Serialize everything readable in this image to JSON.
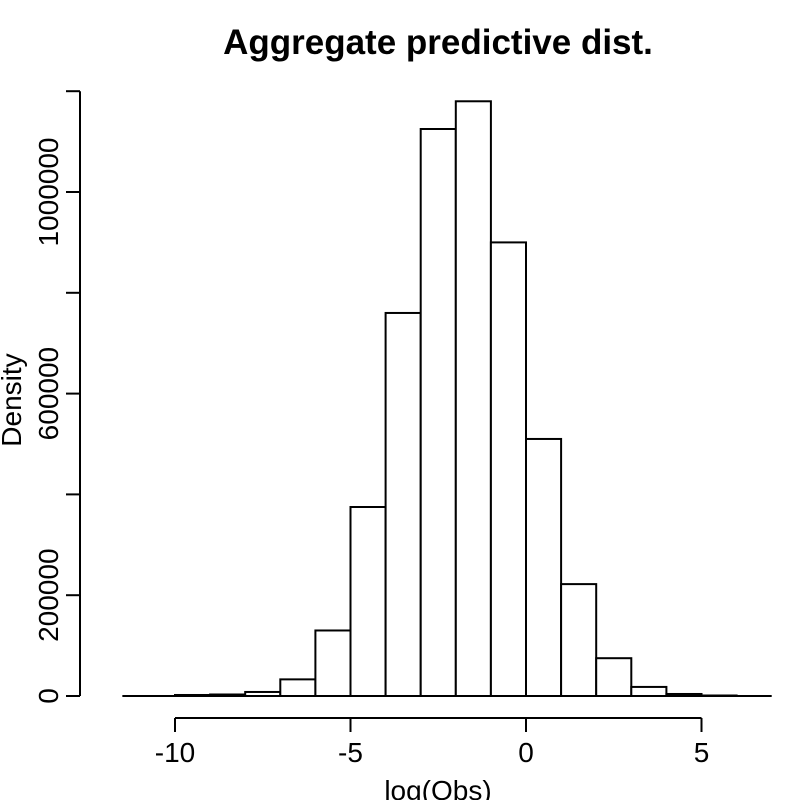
{
  "chart_data": {
    "type": "bar",
    "title": "Aggregate predictive dist.",
    "xlabel": "log(Obs)",
    "ylabel": "Density",
    "xlim": [
      -11.5,
      7
    ],
    "ylim": [
      0,
      1200000
    ],
    "x_ticks": [
      "-10",
      "-5",
      "0",
      "5"
    ],
    "y_ticks": [
      "0",
      "200000",
      "600000",
      "1000000"
    ],
    "grid": false,
    "bins": [
      {
        "x0": -10,
        "x1": -9,
        "value": 2000
      },
      {
        "x0": -9,
        "x1": -8,
        "value": 3000
      },
      {
        "x0": -8,
        "x1": -7,
        "value": 8000
      },
      {
        "x0": -7,
        "x1": -6,
        "value": 33000
      },
      {
        "x0": -6,
        "x1": -5,
        "value": 130000
      },
      {
        "x0": -5,
        "x1": -4,
        "value": 375000
      },
      {
        "x0": -4,
        "x1": -3,
        "value": 760000
      },
      {
        "x0": -3,
        "x1": -2,
        "value": 1125000
      },
      {
        "x0": -2,
        "x1": -1,
        "value": 1180000
      },
      {
        "x0": -1,
        "x1": 0,
        "value": 900000
      },
      {
        "x0": 0,
        "x1": 1,
        "value": 510000
      },
      {
        "x0": 1,
        "x1": 2,
        "value": 222000
      },
      {
        "x0": 2,
        "x1": 3,
        "value": 75000
      },
      {
        "x0": 3,
        "x1": 4,
        "value": 18000
      },
      {
        "x0": 4,
        "x1": 5,
        "value": 4000
      },
      {
        "x0": 5,
        "x1": 6,
        "value": 1000
      }
    ]
  }
}
